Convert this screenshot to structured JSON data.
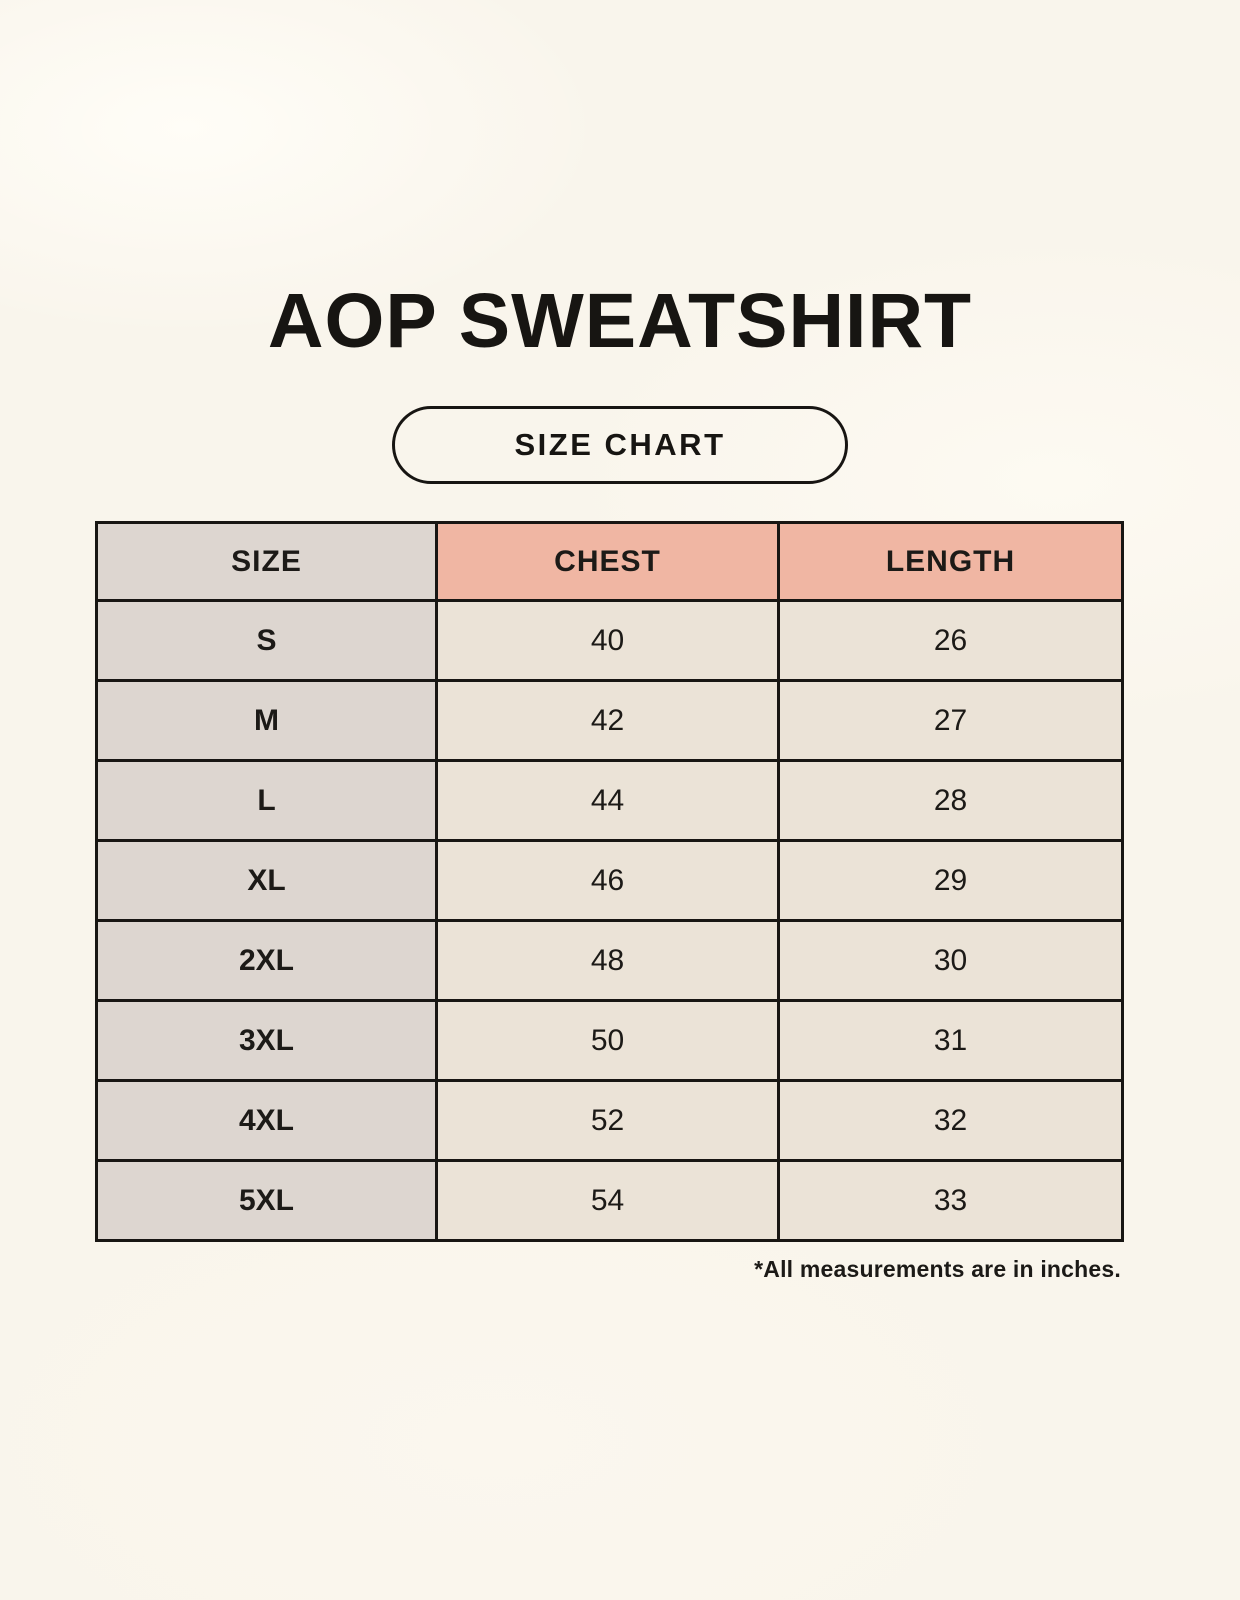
{
  "page": {
    "title": "AOP SWEATSHIRT",
    "badge_label": "SIZE CHART",
    "footnote": "*All measurements are in inches."
  },
  "colors": {
    "background": "#f9f5ec",
    "size_column_bg": "#ddd6d0",
    "header_accent_bg": "#f0b6a3",
    "data_cell_bg": "#ebe3d7",
    "border": "#181613",
    "text": "#1c1a17"
  },
  "table": {
    "headers": {
      "size": "SIZE",
      "chest": "CHEST",
      "length": "LENGTH"
    },
    "rows": [
      {
        "size": "S",
        "chest": "40",
        "length": "26"
      },
      {
        "size": "M",
        "chest": "42",
        "length": "27"
      },
      {
        "size": "L",
        "chest": "44",
        "length": "28"
      },
      {
        "size": "XL",
        "chest": "46",
        "length": "29"
      },
      {
        "size": "2XL",
        "chest": "48",
        "length": "30"
      },
      {
        "size": "3XL",
        "chest": "50",
        "length": "31"
      },
      {
        "size": "4XL",
        "chest": "52",
        "length": "32"
      },
      {
        "size": "5XL",
        "chest": "54",
        "length": "33"
      }
    ]
  },
  "chart_data": {
    "type": "table",
    "title": "AOP SWEATSHIRT",
    "subtitle": "SIZE CHART",
    "columns": [
      "SIZE",
      "CHEST",
      "LENGTH"
    ],
    "rows": [
      [
        "S",
        40,
        26
      ],
      [
        "M",
        42,
        27
      ],
      [
        "L",
        44,
        28
      ],
      [
        "XL",
        46,
        29
      ],
      [
        "2XL",
        48,
        30
      ],
      [
        "3XL",
        50,
        31
      ],
      [
        "4XL",
        52,
        32
      ],
      [
        "5XL",
        54,
        33
      ]
    ],
    "units": "inches",
    "note": "*All measurements are in inches."
  }
}
